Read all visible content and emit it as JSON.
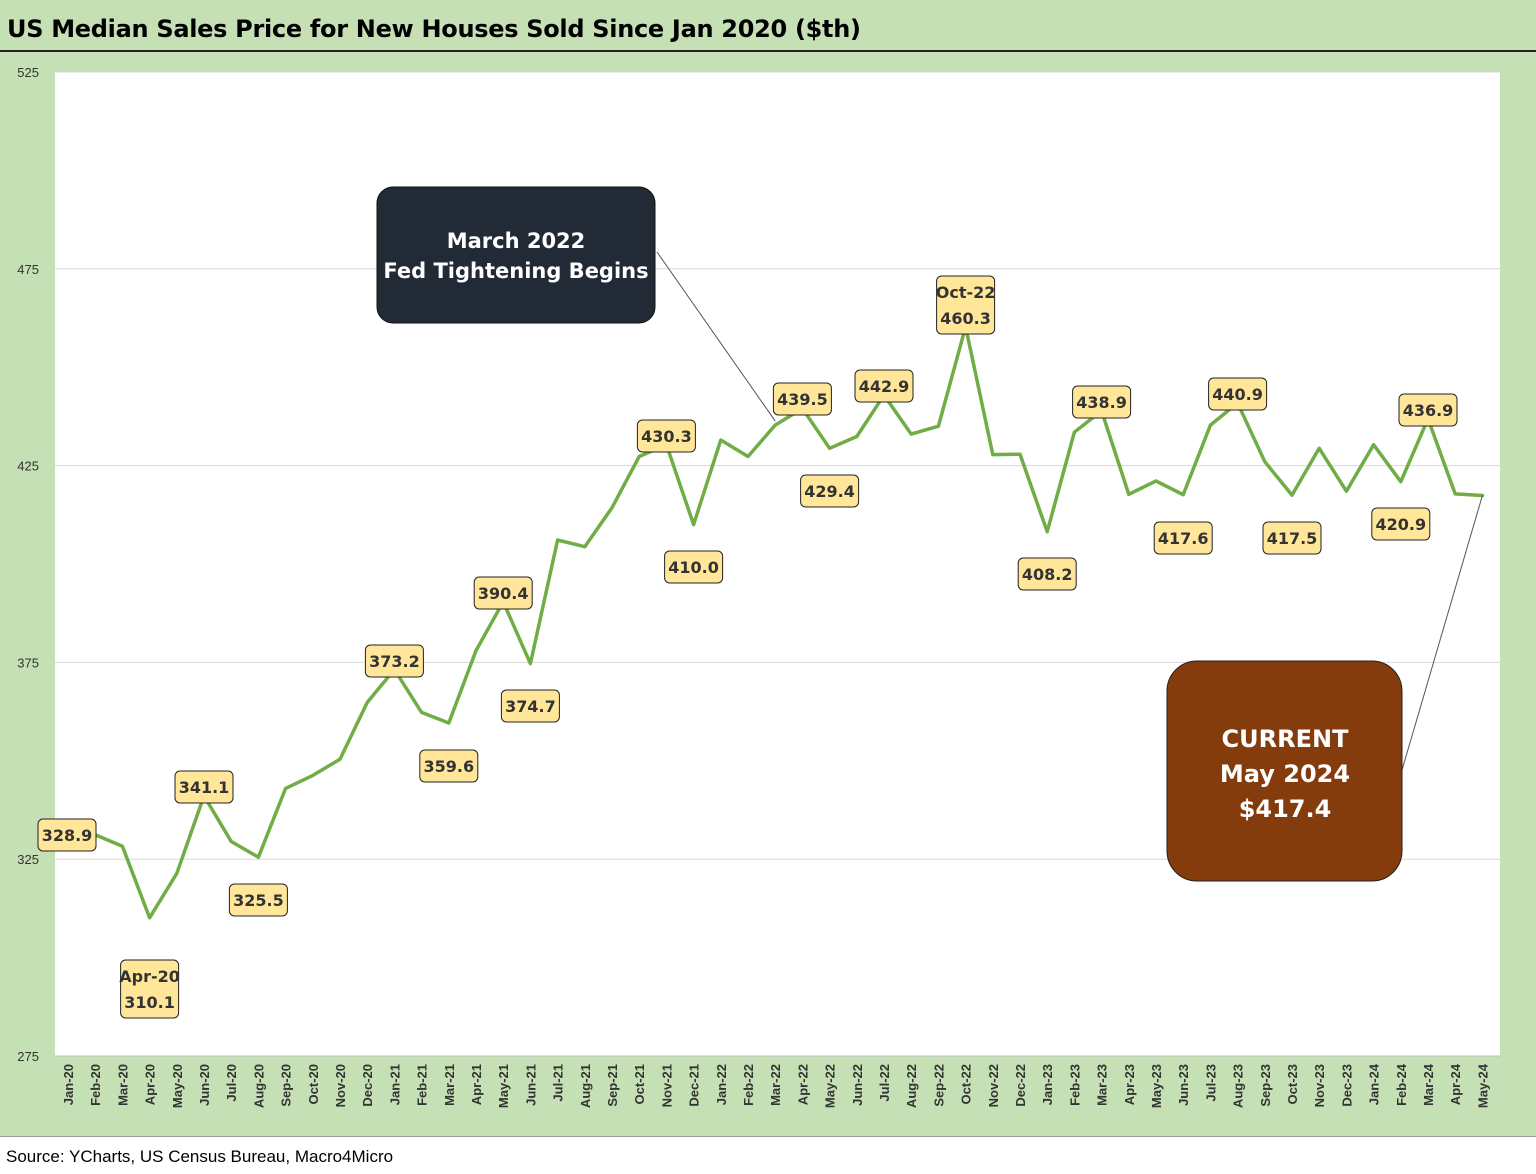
{
  "title": "US Median Sales Price for New Houses Sold Since Jan 2020 ($th)",
  "source": "Source: YCharts, US Census Bureau, Macro4Micro",
  "colors": {
    "background": "#c5e0b4",
    "plot_area": "#ffffff",
    "line": "#70ad47",
    "label_fill": "#ffe699",
    "grid": "#d9d9d9",
    "callout_dark": "#222a35",
    "callout_brown": "#843c0c"
  },
  "chart_data": {
    "type": "line",
    "ylim": [
      275,
      525
    ],
    "yticks": [
      275,
      325,
      375,
      425,
      475,
      525
    ],
    "grid": true,
    "categories": [
      "Jan-20",
      "Feb-20",
      "Mar-20",
      "Apr-20",
      "May-20",
      "Jun-20",
      "Jul-20",
      "Aug-20",
      "Sep-20",
      "Oct-20",
      "Nov-20",
      "Dec-20",
      "Jan-21",
      "Feb-21",
      "Mar-21",
      "Apr-21",
      "May-21",
      "Jun-21",
      "Jul-21",
      "Aug-21",
      "Sep-21",
      "Oct-21",
      "Nov-21",
      "Dec-21",
      "Jan-22",
      "Feb-22",
      "Mar-22",
      "Apr-22",
      "May-22",
      "Jun-22",
      "Jul-22",
      "Aug-22",
      "Sep-22",
      "Oct-22",
      "Nov-22",
      "Dec-22",
      "Jan-23",
      "Feb-23",
      "Mar-23",
      "Apr-23",
      "May-23",
      "Jun-23",
      "Jul-23",
      "Aug-23",
      "Sep-23",
      "Oct-23",
      "Nov-23",
      "Dec-23",
      "Jan-24",
      "Feb-24",
      "Mar-24",
      "Apr-24",
      "May-24"
    ],
    "series": [
      {
        "name": "Median Sales Price ($th)",
        "values": [
          328.9,
          331.2,
          328.3,
          310.1,
          321.4,
          341.1,
          329.5,
          325.5,
          343.0,
          346.3,
          350.4,
          364.8,
          373.2,
          362.3,
          359.6,
          378.0,
          390.4,
          374.7,
          406.1,
          404.4,
          414.3,
          427.3,
          430.3,
          410.0,
          431.5,
          427.3,
          435.3,
          439.5,
          429.4,
          432.4,
          442.9,
          433.0,
          435.0,
          460.3,
          427.8,
          427.9,
          408.2,
          433.5,
          438.9,
          417.7,
          421.1,
          417.6,
          435.3,
          440.9,
          426.0,
          417.5,
          429.4,
          418.5,
          430.3,
          420.9,
          436.9,
          417.8,
          417.4
        ]
      }
    ],
    "data_labels": [
      {
        "category": "Jan-20",
        "text": "328.9"
      },
      {
        "category": "Apr-20",
        "text": "Apr-20\n310.1"
      },
      {
        "category": "Jun-20",
        "text": "341.1"
      },
      {
        "category": "Aug-20",
        "text": "325.5"
      },
      {
        "category": "Jan-21",
        "text": "373.2"
      },
      {
        "category": "Mar-21",
        "text": "359.6"
      },
      {
        "category": "May-21",
        "text": "390.4"
      },
      {
        "category": "Jun-21",
        "text": "374.7"
      },
      {
        "category": "Nov-21",
        "text": "430.3"
      },
      {
        "category": "Dec-21",
        "text": "410.0"
      },
      {
        "category": "Apr-22",
        "text": "439.5"
      },
      {
        "category": "May-22",
        "text": "429.4"
      },
      {
        "category": "Jul-22",
        "text": "442.9"
      },
      {
        "category": "Oct-22",
        "text": "Oct-22\n460.3"
      },
      {
        "category": "Jan-23",
        "text": "408.2"
      },
      {
        "category": "Mar-23",
        "text": "438.9"
      },
      {
        "category": "Jun-23",
        "text": "417.6"
      },
      {
        "category": "Aug-23",
        "text": "440.9"
      },
      {
        "category": "Oct-23",
        "text": "417.5"
      },
      {
        "category": "Feb-24",
        "text": "420.9"
      },
      {
        "category": "Mar-24",
        "text": "436.9"
      }
    ],
    "annotations": [
      {
        "name": "fed-tightening",
        "text": "March 2022\nFed Tightening Begins",
        "points_to": "Mar-22"
      },
      {
        "name": "current",
        "text": "CURRENT\nMay 2024\n$417.4",
        "points_to": "May-24"
      }
    ]
  }
}
